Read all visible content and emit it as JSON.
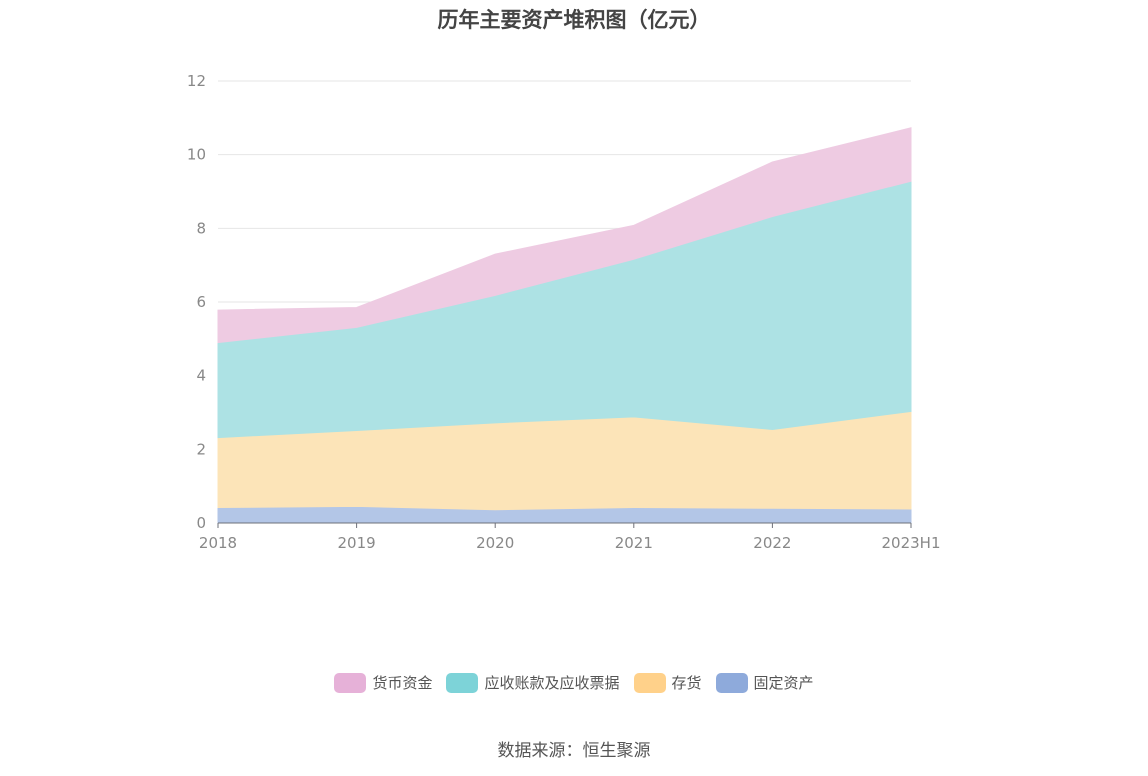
{
  "chart_data": {
    "type": "area",
    "stacked": true,
    "title": "历年主要资产堆积图（亿元）",
    "categories": [
      "2018",
      "2019",
      "2020",
      "2021",
      "2022",
      "2023H1"
    ],
    "ylim": [
      0,
      12
    ],
    "yticks": [
      0,
      2,
      4,
      6,
      8,
      10,
      12
    ],
    "grid": true,
    "legend_position": "bottom",
    "series": [
      {
        "name": "固定资产",
        "color": "#8eaadb",
        "fill": "#b3c6e7",
        "values": [
          0.42,
          0.45,
          0.36,
          0.42,
          0.4,
          0.38
        ]
      },
      {
        "name": "存货",
        "color": "#ffd18a",
        "fill": "#fce4b8",
        "values": [
          1.9,
          2.06,
          2.36,
          2.46,
          2.14,
          2.65
        ]
      },
      {
        "name": "应收账款及应收票据",
        "color": "#7dd3d8",
        "fill": "#ade2e4",
        "values": [
          2.58,
          2.8,
          3.46,
          4.28,
          5.78,
          6.25
        ]
      },
      {
        "name": "货币资金",
        "color": "#e6b1d8",
        "fill": "#eecbe2",
        "values": [
          0.88,
          0.54,
          1.12,
          0.92,
          1.48,
          1.45
        ]
      }
    ],
    "legend_order": [
      "货币资金",
      "应收账款及应收票据",
      "存货",
      "固定资产"
    ]
  },
  "source": "数据来源：恒生聚源"
}
